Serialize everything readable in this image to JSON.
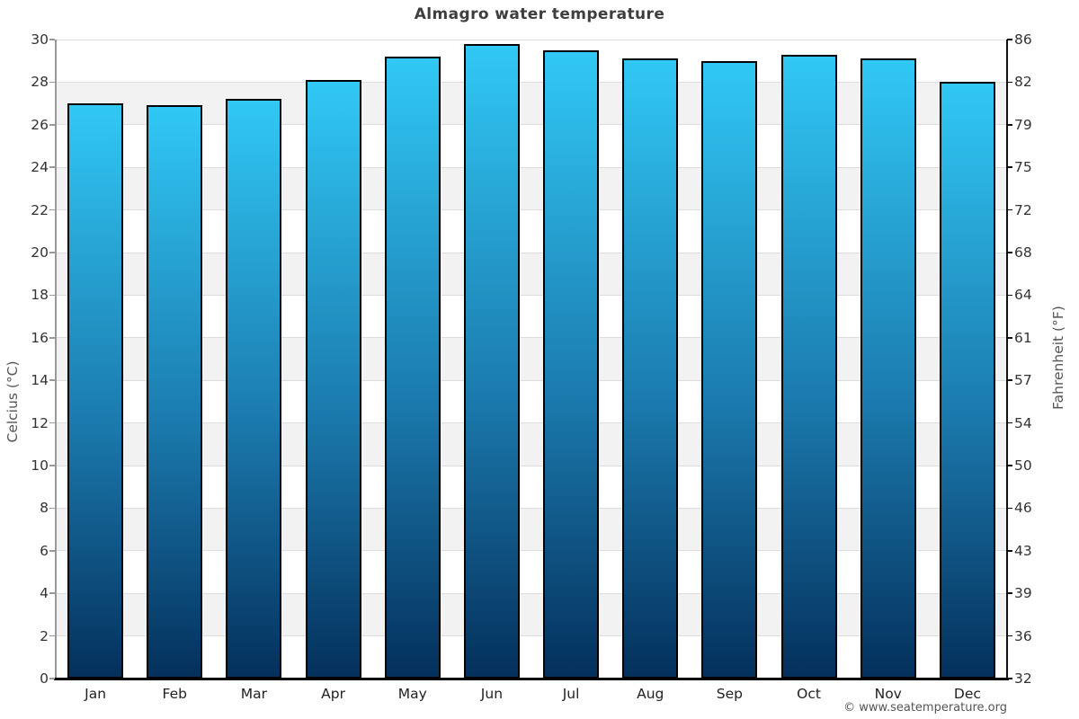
{
  "title": "Almagro water temperature",
  "footer": "© www.seatemperature.org",
  "axes": {
    "left_label": "Celcius (°C)",
    "right_label": "Fahrenheit (°F)"
  },
  "colors": {
    "bar_gradient_top": "#31c8f5",
    "bar_gradient_mid": "#1b7bae",
    "bar_gradient_bottom": "#04305c",
    "bar_border": "#000000",
    "band_gray": "#f2f2f2",
    "gridline": "#dddddd",
    "title_text": "#3e3e3e",
    "tick_text": "#333333"
  },
  "chart_data": {
    "type": "bar",
    "title": "Almagro water temperature",
    "categories": [
      "Jan",
      "Feb",
      "Mar",
      "Apr",
      "May",
      "Jun",
      "Jul",
      "Aug",
      "Sep",
      "Oct",
      "Nov",
      "Dec"
    ],
    "values": [
      27.0,
      26.9,
      27.2,
      28.1,
      29.2,
      29.8,
      29.5,
      29.1,
      29.0,
      29.3,
      29.1,
      28.0
    ],
    "xlabel": "",
    "ylabel_left": "Celcius (°C)",
    "ylabel_right": "Fahrenheit (°F)",
    "ylim": [
      0,
      30
    ],
    "celsius_ticks": [
      0,
      2,
      4,
      6,
      8,
      10,
      12,
      14,
      16,
      18,
      20,
      22,
      24,
      26,
      28,
      30
    ],
    "fahrenheit_ticks": [
      32,
      36,
      39,
      43,
      46,
      50,
      54,
      57,
      61,
      64,
      68,
      72,
      75,
      79,
      82,
      86
    ],
    "grid": "alternating 2-degree horizontal bands, gray on 2-4, 6-8, ... 26-28",
    "legend": "none",
    "bar_gradient": [
      "#31c8f5",
      "#1b7bae",
      "#04305c"
    ]
  }
}
